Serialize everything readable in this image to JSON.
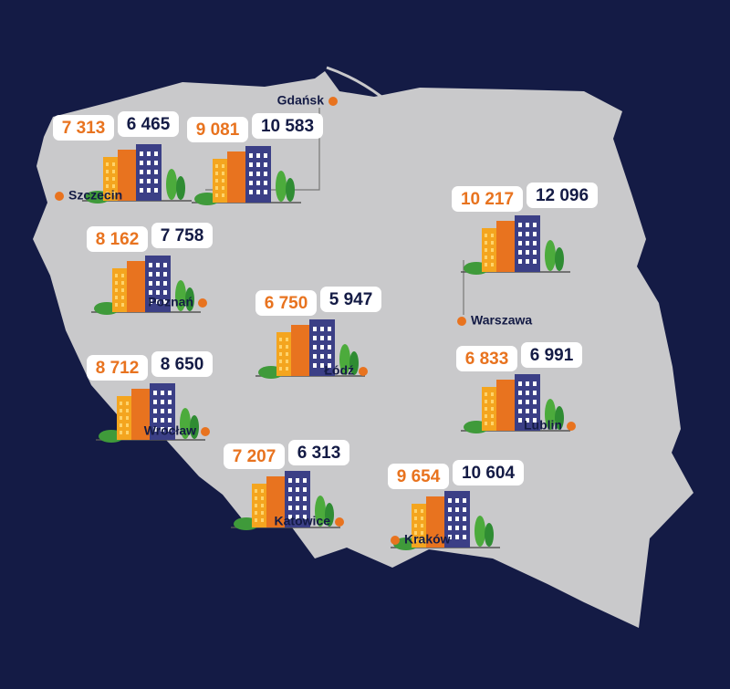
{
  "cities": [
    {
      "name": "Szczecin",
      "price_orange": "7 313",
      "price_navy": "6 465"
    },
    {
      "name": "Gdańsk",
      "price_orange": "9 081",
      "price_navy": "10 583"
    },
    {
      "name": "Warszawa",
      "price_orange": "10 217",
      "price_navy": "12 096"
    },
    {
      "name": "Poznań",
      "price_orange": "8 162",
      "price_navy": "7 758"
    },
    {
      "name": "Łódź",
      "price_orange": "6 750",
      "price_navy": "5 947"
    },
    {
      "name": "Wrocław",
      "price_orange": "8 712",
      "price_navy": "8 650"
    },
    {
      "name": "Lublin",
      "price_orange": "6 833",
      "price_navy": "6 991"
    },
    {
      "name": "Katowice",
      "price_orange": "7 207",
      "price_navy": "6 313"
    },
    {
      "name": "Kraków",
      "price_orange": "9 654",
      "price_navy": "10 604"
    }
  ]
}
